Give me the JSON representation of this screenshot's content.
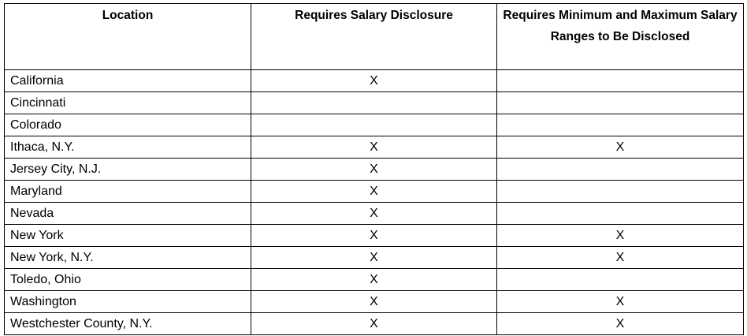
{
  "table": {
    "headers": [
      "Location",
      "Requires Salary Disclosure",
      "Requires Minimum and Maximum Salary Ranges to Be Disclosed"
    ],
    "rows": [
      {
        "location": "California",
        "disclosure": "X",
        "ranges": ""
      },
      {
        "location": "Cincinnati",
        "disclosure": "",
        "ranges": ""
      },
      {
        "location": "Colorado",
        "disclosure": "",
        "ranges": ""
      },
      {
        "location": "Ithaca, N.Y.",
        "disclosure": "X",
        "ranges": "X"
      },
      {
        "location": "Jersey City, N.J.",
        "disclosure": "X",
        "ranges": ""
      },
      {
        "location": "Maryland",
        "disclosure": "X",
        "ranges": ""
      },
      {
        "location": "Nevada",
        "disclosure": "X",
        "ranges": ""
      },
      {
        "location": "New York",
        "disclosure": "X",
        "ranges": "X"
      },
      {
        "location": "New York, N.Y.",
        "disclosure": "X",
        "ranges": "X"
      },
      {
        "location": "Toledo, Ohio",
        "disclosure": "X",
        "ranges": ""
      },
      {
        "location": "Washington",
        "disclosure": "X",
        "ranges": "X"
      },
      {
        "location": "Westchester County, N.Y.",
        "disclosure": "X",
        "ranges": "X"
      }
    ]
  }
}
